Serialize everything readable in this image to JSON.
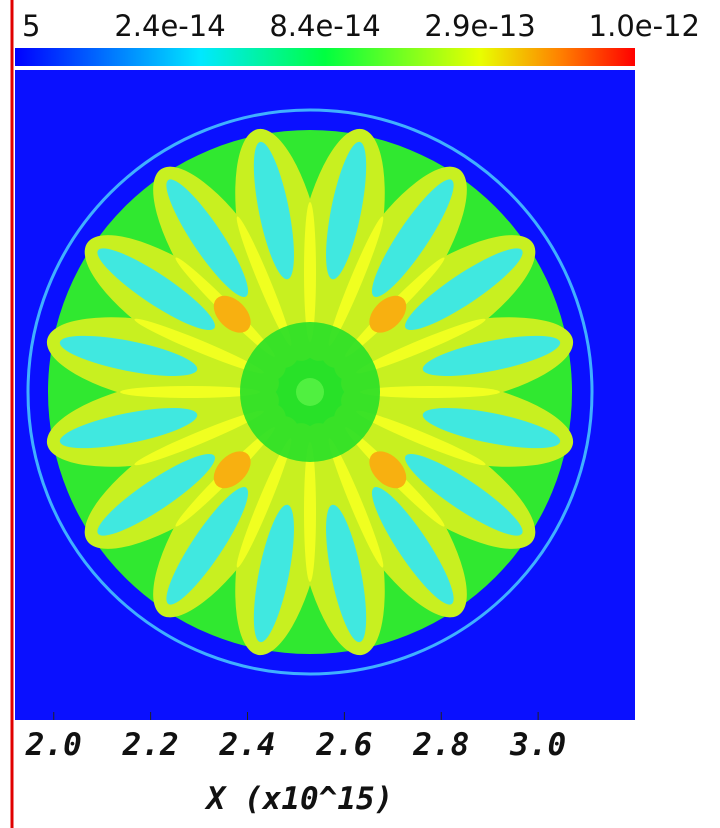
{
  "chart_data": {
    "type": "image",
    "colorbar_labels": [
      "5",
      "2.4e-14",
      "8.4e-14",
      "2.9e-13",
      "1.0e-12"
    ],
    "xlim": [
      1.92,
      3.2
    ],
    "xticks": [
      {
        "value": 2.0,
        "label": "2.0"
      },
      {
        "value": 2.2,
        "label": "2.2"
      },
      {
        "value": 2.4,
        "label": "2.4"
      },
      {
        "value": 2.6,
        "label": "2.6"
      },
      {
        "value": 2.8,
        "label": "2.8"
      },
      {
        "value": 3.0,
        "label": "3.0"
      }
    ],
    "xlabel": "X (x10^15)"
  }
}
